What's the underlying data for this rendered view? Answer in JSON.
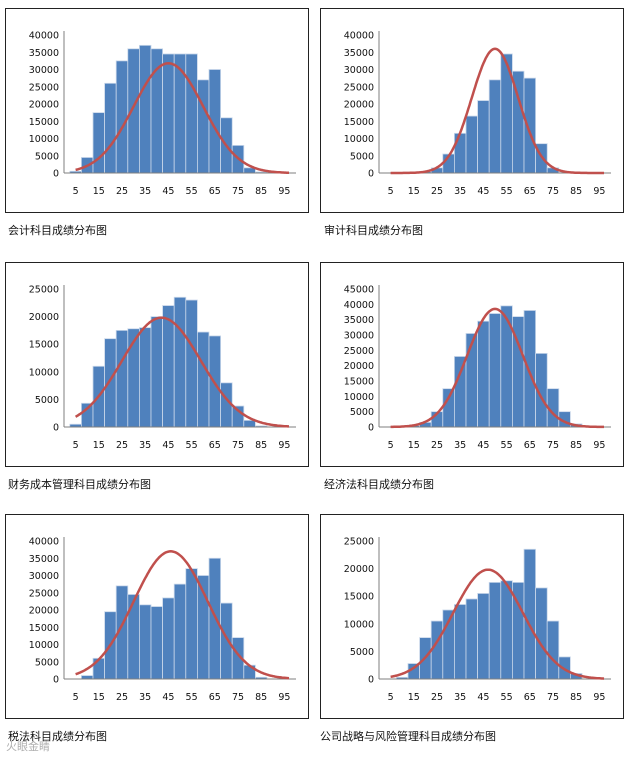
{
  "charts": [
    {
      "caption": "会计科目成绩分布图"
    },
    {
      "caption": "审计科目成绩分布图"
    },
    {
      "caption": "财务成本管理科目成绩分布图"
    },
    {
      "caption": "经济法科目成绩分布图"
    },
    {
      "caption": "税法科目成绩分布图"
    },
    {
      "caption": "公司战略与风险管理科目成绩分布图"
    }
  ],
  "watermark": "火眼金睛",
  "chart_data": [
    {
      "type": "bar",
      "title": "会计科目成绩分布图",
      "x": [
        5,
        10,
        15,
        20,
        25,
        30,
        35,
        40,
        45,
        50,
        55,
        60,
        65,
        70,
        75,
        80,
        85,
        90,
        95
      ],
      "x_tick_labels": [
        "5",
        "15",
        "25",
        "35",
        "45",
        "55",
        "65",
        "75",
        "85",
        "95"
      ],
      "values": [
        500,
        4500,
        17500,
        26000,
        32500,
        36000,
        37000,
        36000,
        34500,
        34500,
        34500,
        27000,
        30000,
        16000,
        8000,
        1500,
        300,
        0,
        0
      ],
      "fit_curve": {
        "mean": 45,
        "peak": 31800,
        "sd": 15
      },
      "ylim": [
        0,
        40000
      ],
      "yticks": [
        0,
        5000,
        10000,
        15000,
        20000,
        25000,
        30000,
        35000,
        40000
      ]
    },
    {
      "type": "bar",
      "title": "审计科目成绩分布图",
      "x": [
        5,
        10,
        15,
        20,
        25,
        30,
        35,
        40,
        45,
        50,
        55,
        60,
        65,
        70,
        75,
        80,
        85,
        90,
        95
      ],
      "x_tick_labels": [
        "5",
        "15",
        "25",
        "35",
        "45",
        "55",
        "65",
        "75",
        "85",
        "95"
      ],
      "values": [
        0,
        0,
        0,
        400,
        1500,
        5500,
        11500,
        16500,
        21000,
        27000,
        34500,
        29500,
        27500,
        8500,
        1500,
        100,
        0,
        0,
        0
      ],
      "fit_curve": {
        "mean": 50,
        "peak": 36000,
        "sd": 10
      },
      "ylim": [
        0,
        40000
      ],
      "yticks": [
        0,
        5000,
        10000,
        15000,
        20000,
        25000,
        30000,
        35000,
        40000
      ]
    },
    {
      "type": "bar",
      "title": "财务成本管理科目成绩分布图",
      "x": [
        5,
        10,
        15,
        20,
        25,
        30,
        35,
        40,
        45,
        50,
        55,
        60,
        65,
        70,
        75,
        80,
        85,
        90,
        95
      ],
      "x_tick_labels": [
        "5",
        "15",
        "25",
        "35",
        "45",
        "55",
        "65",
        "75",
        "85",
        "95"
      ],
      "values": [
        500,
        4300,
        11000,
        16000,
        17500,
        17800,
        18000,
        20000,
        22000,
        23500,
        23000,
        17200,
        16500,
        8000,
        3800,
        1200,
        200,
        0,
        0
      ],
      "fit_curve": {
        "mean": 42,
        "peak": 19800,
        "sd": 17
      },
      "ylim": [
        0,
        25000
      ],
      "yticks": [
        0,
        5000,
        10000,
        15000,
        20000,
        25000
      ]
    },
    {
      "type": "bar",
      "title": "经济法科目成绩分布图",
      "x": [
        5,
        10,
        15,
        20,
        25,
        30,
        35,
        40,
        45,
        50,
        55,
        60,
        65,
        70,
        75,
        80,
        85,
        90,
        95
      ],
      "x_tick_labels": [
        "5",
        "15",
        "25",
        "35",
        "45",
        "55",
        "65",
        "75",
        "85",
        "95"
      ],
      "values": [
        0,
        0,
        500,
        1500,
        5000,
        12500,
        23000,
        30500,
        34500,
        37000,
        39500,
        36000,
        38000,
        24000,
        12500,
        5000,
        1000,
        0,
        0
      ],
      "fit_curve": {
        "mean": 50,
        "peak": 38500,
        "sd": 12
      },
      "ylim": [
        0,
        45000
      ],
      "yticks": [
        0,
        5000,
        10000,
        15000,
        20000,
        25000,
        30000,
        35000,
        40000,
        45000
      ]
    },
    {
      "type": "bar",
      "title": "税法科目成绩分布图",
      "x": [
        5,
        10,
        15,
        20,
        25,
        30,
        35,
        40,
        45,
        50,
        55,
        60,
        65,
        70,
        75,
        80,
        85,
        90,
        95
      ],
      "x_tick_labels": [
        "5",
        "15",
        "25",
        "35",
        "45",
        "55",
        "65",
        "75",
        "85",
        "95"
      ],
      "values": [
        0,
        1000,
        6000,
        19500,
        27000,
        24500,
        21500,
        21000,
        23500,
        27500,
        32000,
        30000,
        35000,
        22000,
        12000,
        4000,
        500,
        0,
        0
      ],
      "fit_curve": {
        "mean": 46,
        "peak": 37000,
        "sd": 16
      },
      "ylim": [
        0,
        40000
      ],
      "yticks": [
        0,
        5000,
        10000,
        15000,
        20000,
        25000,
        30000,
        35000,
        40000
      ]
    },
    {
      "type": "bar",
      "title": "公司战略与风险管理科目成绩分布图",
      "x": [
        5,
        10,
        15,
        20,
        25,
        30,
        35,
        40,
        45,
        50,
        55,
        60,
        65,
        70,
        75,
        80,
        85,
        90,
        95
      ],
      "x_tick_labels": [
        "5",
        "15",
        "25",
        "35",
        "45",
        "55",
        "65",
        "75",
        "85",
        "95"
      ],
      "values": [
        0,
        300,
        2800,
        7500,
        10500,
        12500,
        13500,
        14500,
        15500,
        17500,
        17800,
        17500,
        23500,
        16500,
        10500,
        4000,
        1000,
        0,
        0
      ],
      "fit_curve": {
        "mean": 47,
        "peak": 19800,
        "sd": 15
      },
      "ylim": [
        0,
        25000
      ],
      "yticks": [
        0,
        5000,
        10000,
        15000,
        20000,
        25000
      ]
    }
  ]
}
